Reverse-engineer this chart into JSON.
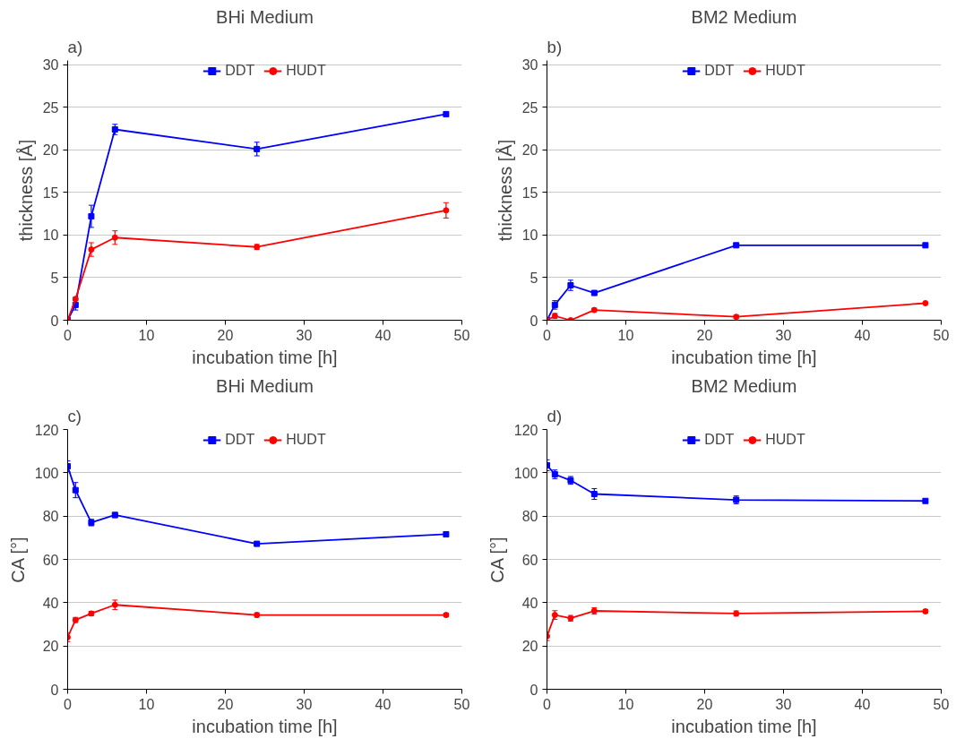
{
  "chart_data": [
    {
      "type": "line",
      "title": "BHi Medium",
      "annotations": [
        "a)"
      ],
      "xlabel": "incubation time [h]",
      "ylabel": "thickness [Å]",
      "x": [
        0,
        1,
        3,
        6,
        24,
        48
      ],
      "xlim": [
        0,
        50
      ],
      "xticks": [
        0,
        10,
        20,
        30,
        40,
        50
      ],
      "ylim": [
        0,
        30.5
      ],
      "yticks": [
        0,
        5,
        10,
        15,
        20,
        25,
        30
      ],
      "grid": "y",
      "legend": "top",
      "series": [
        {
          "name": "DDT",
          "color": "#0000ff",
          "marker": "square",
          "values": [
            0,
            1.8,
            12.2,
            22.4,
            20.1,
            24.2
          ],
          "errors": [
            null,
            0.6,
            1.3,
            0.6,
            0.8,
            0.2
          ]
        },
        {
          "name": "HUDT",
          "color": "#ff0000",
          "marker": "circle",
          "values": [
            0,
            2.5,
            8.3,
            9.7,
            8.6,
            12.9
          ],
          "errors": [
            null,
            0.2,
            0.8,
            0.8,
            0.3,
            0.9
          ]
        }
      ]
    },
    {
      "type": "line",
      "title": "BM2 Medium",
      "annotations": [
        "b)"
      ],
      "xlabel": "incubation time [h]",
      "ylabel": "thickness [Å]",
      "x": [
        0,
        1,
        3,
        6,
        24,
        48
      ],
      "xlim": [
        0,
        50
      ],
      "xticks": [
        0,
        10,
        20,
        30,
        40,
        50
      ],
      "ylim": [
        0,
        30.5
      ],
      "yticks": [
        0,
        5,
        10,
        15,
        20,
        25,
        30
      ],
      "grid": "y",
      "legend": "top",
      "series": [
        {
          "name": "DDT",
          "color": "#0000ff",
          "marker": "square",
          "values": [
            0,
            1.8,
            4.1,
            3.2,
            8.8,
            8.8
          ],
          "errors": [
            null,
            0.5,
            0.6,
            0.2,
            0.2,
            0.2
          ]
        },
        {
          "name": "HUDT",
          "color": "#ff0000",
          "marker": "circle",
          "values": [
            0,
            0.5,
            0,
            1.2,
            0.4,
            2.0
          ],
          "errors": [
            null,
            0.3,
            0.1,
            0.2,
            0.2,
            0.1
          ]
        }
      ]
    },
    {
      "type": "line",
      "title": "BHi Medium",
      "annotations": [
        "c)"
      ],
      "xlabel": "incubation time [h]",
      "ylabel": "CA [°]",
      "x": [
        0,
        1,
        3,
        6,
        24,
        48
      ],
      "xlim": [
        0,
        50
      ],
      "xticks": [
        0,
        10,
        20,
        30,
        40,
        50
      ],
      "ylim": [
        0,
        120
      ],
      "yticks": [
        0,
        20,
        40,
        60,
        80,
        100,
        120
      ],
      "grid": "y",
      "legend": "top",
      "series": [
        {
          "name": "DDT",
          "color": "#0000ff",
          "marker": "square",
          "values": [
            103,
            92,
            77,
            80.5,
            67.2,
            71.6
          ],
          "errors": [
            2.5,
            3.5,
            1.5,
            1.2,
            0.8,
            1.0
          ]
        },
        {
          "name": "HUDT",
          "color": "#ff0000",
          "marker": "circle",
          "values": [
            24,
            32,
            35,
            39,
            34.3,
            34.3
          ],
          "errors": [
            2,
            1.2,
            1,
            2.2,
            1,
            0.8
          ]
        }
      ]
    },
    {
      "type": "line",
      "title": "BM2 Medium",
      "annotations": [
        "d)"
      ],
      "xlabel": "incubation time [h]",
      "ylabel": "CA [°]",
      "x": [
        0,
        1,
        3,
        6,
        24,
        48
      ],
      "xlim": [
        0,
        50
      ],
      "xticks": [
        0,
        10,
        20,
        30,
        40,
        50
      ],
      "ylim": [
        0,
        120
      ],
      "yticks": [
        0,
        20,
        40,
        60,
        80,
        100,
        120
      ],
      "grid": "y",
      "legend": "top",
      "series": [
        {
          "name": "DDT",
          "color": "#0000ff",
          "marker": "square",
          "values": [
            103.5,
            99.3,
            96.5,
            90.2,
            87.5,
            87
          ],
          "errors": [
            2.5,
            2,
            1.8,
            2.5,
            1.8,
            0.8
          ]
        },
        {
          "name": "HUDT",
          "color": "#ff0000",
          "marker": "circle",
          "values": [
            24.5,
            34.3,
            32.8,
            36.2,
            35,
            36
          ],
          "errors": [
            2,
            2,
            1.3,
            1.5,
            1.2,
            0.8
          ]
        }
      ]
    }
  ]
}
